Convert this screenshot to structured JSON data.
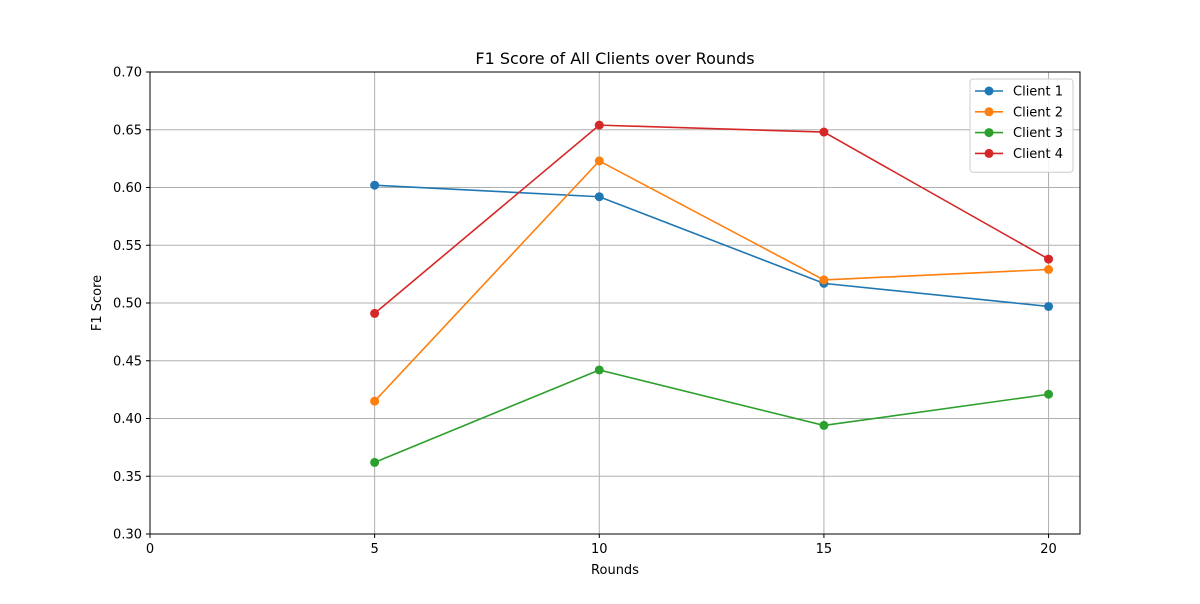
{
  "chart_data": {
    "type": "line",
    "title": "F1 Score of All Clients over Rounds",
    "xlabel": "Rounds",
    "ylabel": "F1 Score",
    "xlim": [
      0,
      20.7
    ],
    "ylim": [
      0.3,
      0.7
    ],
    "xticks": [
      "0",
      "5",
      "10",
      "15",
      "20"
    ],
    "yticks": [
      "0.30",
      "0.35",
      "0.40",
      "0.45",
      "0.50",
      "0.55",
      "0.60",
      "0.65",
      "0.70"
    ],
    "grid": true,
    "legend_position": "top-right",
    "x": [
      5,
      10,
      15,
      20
    ],
    "series": [
      {
        "name": "Client 1",
        "color": "#1f77b4",
        "values": [
          0.602,
          0.592,
          0.517,
          0.497
        ]
      },
      {
        "name": "Client 2",
        "color": "#ff7f0e",
        "values": [
          0.415,
          0.623,
          0.52,
          0.529
        ]
      },
      {
        "name": "Client 3",
        "color": "#2ca02c",
        "values": [
          0.362,
          0.442,
          0.394,
          0.421
        ]
      },
      {
        "name": "Client 4",
        "color": "#d62728",
        "values": [
          0.491,
          0.654,
          0.648,
          0.538
        ]
      }
    ]
  }
}
